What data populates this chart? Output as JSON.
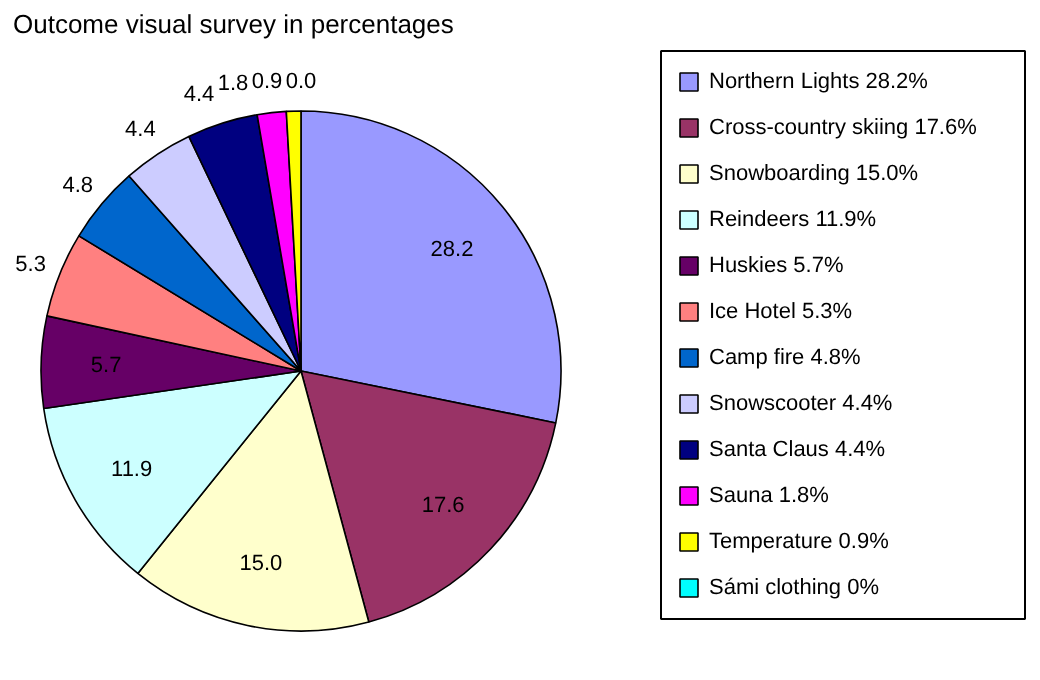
{
  "chart_data": {
    "type": "pie",
    "title": "Outcome visual survey in percentages",
    "categories": [
      "Northern Lights 28.2%",
      "Cross-country skiing 17.6%",
      "Snowboarding 15.0%",
      "Reindeers 11.9%",
      "Huskies 5.7%",
      "Ice Hotel 5.3%",
      "Camp fire 4.8%",
      "Snowscooter 4.4%",
      "Santa Claus 4.4%",
      "Sauna 1.8%",
      "Temperature 0.9%",
      "Sámi clothing 0%"
    ],
    "values": [
      28.2,
      17.6,
      15.0,
      11.9,
      5.7,
      5.3,
      4.8,
      4.4,
      4.4,
      1.8,
      0.9,
      0.0
    ],
    "value_labels": [
      "28.2",
      "17.6",
      "15.0",
      "11.9",
      "5.7",
      "5.3",
      "4.8",
      "4.4",
      "4.4",
      "1.8",
      "0.9",
      "0.0"
    ],
    "colors": [
      "#9999ff",
      "#993366",
      "#ffffcc",
      "#ccffff",
      "#660066",
      "#ff8080",
      "#0066cc",
      "#ccccff",
      "#000080",
      "#ff00ff",
      "#ffff00",
      "#00ffff"
    ],
    "legend": "right"
  }
}
